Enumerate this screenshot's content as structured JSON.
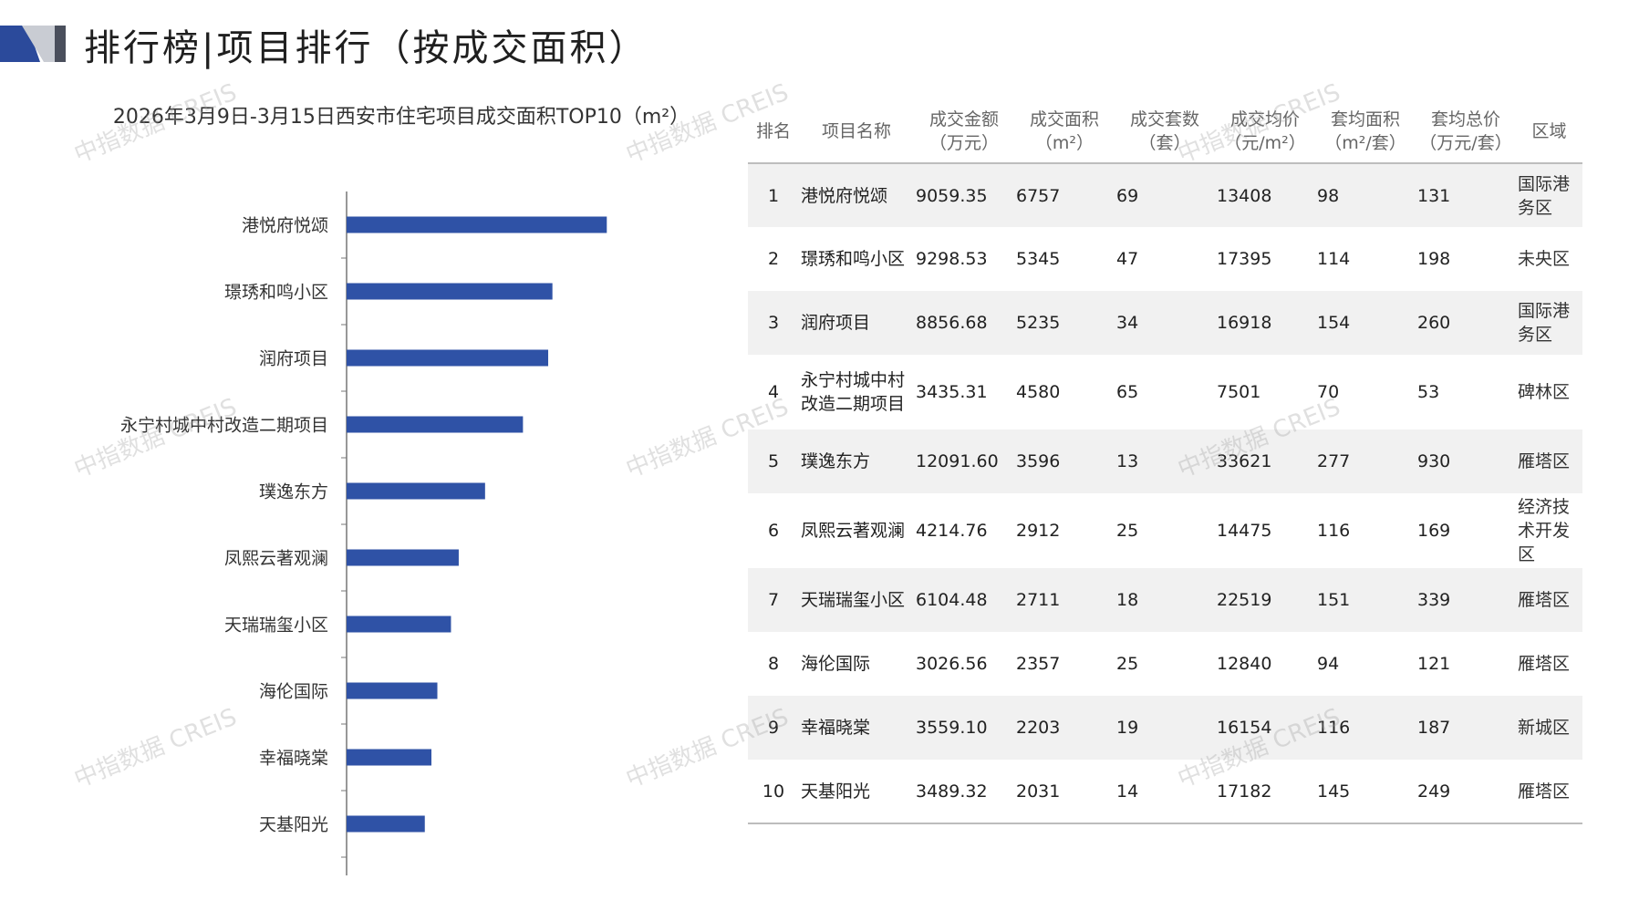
{
  "page": {
    "title": "排行榜|项目排行（按成交面积）"
  },
  "colors": {
    "bar": "#2f52a6",
    "logo_dark": "#2b4a9b",
    "logo_light": "#c9ccd3",
    "row_stripe": "#f1f1f1"
  },
  "chart_data": {
    "type": "bar",
    "orientation": "horizontal",
    "title": "2026年3月9日-3月15日西安市住宅项目成交面积TOP10（m²）",
    "categories": [
      "港悦府悦颂",
      "璟琇和鸣小区",
      "润府项目",
      "永宁村城中村改造二期项目",
      "璞逸东方",
      "凤熙云著观澜",
      "天瑞瑞玺小区",
      "海伦国际",
      "幸福晓棠",
      "天基阳光"
    ],
    "values": [
      6757,
      5345,
      5235,
      4580,
      3596,
      2912,
      2711,
      2357,
      2203,
      2031
    ],
    "xlim": [
      0,
      9000
    ],
    "grid": false,
    "legend": "none"
  },
  "table": {
    "headers": [
      "排名",
      "项目名称",
      "成交金额\n（万元）",
      "成交面积\n（m²）",
      "成交套数\n（套）",
      "成交均价\n（元/m²）",
      "套均面积\n（m²/套）",
      "套均总价\n（万元/套）",
      "区域"
    ],
    "rows": [
      [
        "1",
        "港悦府悦颂",
        "9059.35",
        "6757",
        "69",
        "13408",
        "98",
        "131",
        "国际港务区"
      ],
      [
        "2",
        "璟琇和鸣小区",
        "9298.53",
        "5345",
        "47",
        "17395",
        "114",
        "198",
        "未央区"
      ],
      [
        "3",
        "润府项目",
        "8856.68",
        "5235",
        "34",
        "16918",
        "154",
        "260",
        "国际港务区"
      ],
      [
        "4",
        "永宁村城中村改造二期项目",
        "3435.31",
        "4580",
        "65",
        "7501",
        "70",
        "53",
        "碑林区"
      ],
      [
        "5",
        "璞逸东方",
        "12091.60",
        "3596",
        "13",
        "33621",
        "277",
        "930",
        "雁塔区"
      ],
      [
        "6",
        "凤熙云著观澜",
        "4214.76",
        "2912",
        "25",
        "14475",
        "116",
        "169",
        "经济技术开发区"
      ],
      [
        "7",
        "天瑞瑞玺小区",
        "6104.48",
        "2711",
        "18",
        "22519",
        "151",
        "339",
        "雁塔区"
      ],
      [
        "8",
        "海伦国际",
        "3026.56",
        "2357",
        "25",
        "12840",
        "94",
        "121",
        "雁塔区"
      ],
      [
        "9",
        "幸福晓棠",
        "3559.10",
        "2203",
        "19",
        "16154",
        "116",
        "187",
        "新城区"
      ],
      [
        "10",
        "天基阳光",
        "3489.32",
        "2031",
        "14",
        "17182",
        "145",
        "249",
        "雁塔区"
      ]
    ]
  },
  "watermark": {
    "text": "中指数据 CREIS"
  }
}
